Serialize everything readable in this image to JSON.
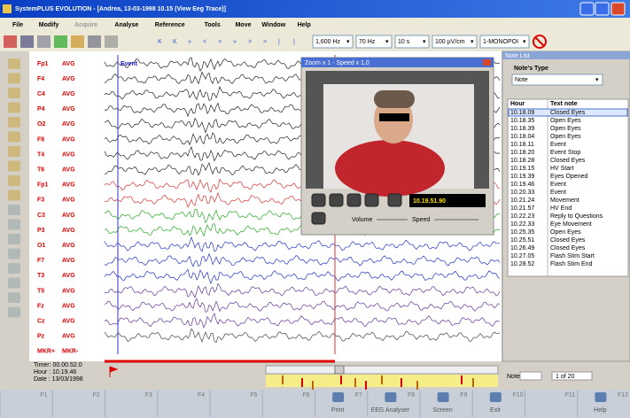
{
  "window": {
    "title": "SystemPLUS EVOLUTION - [Andrea,       13-03-1998 10.15 (View Eeg Trace)]",
    "menu": [
      "File",
      "Modify",
      "Acquire",
      "Analyse",
      "Reference",
      "Tools",
      "Move",
      "Window",
      "Help"
    ],
    "toolbar": [
      "1,600 Hz",
      "70 Hz",
      "10 s",
      "100 µV/cm",
      "1-MONOPOI"
    ]
  },
  "eeg": {
    "event": "Event",
    "channels": [
      [
        "Fp1",
        "AVG"
      ],
      [
        "F4",
        "AVG"
      ],
      [
        "C4",
        "AVG"
      ],
      [
        "P4",
        "AVG"
      ],
      [
        "O2",
        "AVG"
      ],
      [
        "F8",
        "AVG"
      ],
      [
        "T4",
        "AVG"
      ],
      [
        "T6",
        "AVG"
      ],
      [
        "Fp1",
        "AVG"
      ],
      [
        "F3",
        "AVG"
      ],
      [
        "C3",
        "AVG"
      ],
      [
        "P3",
        "AVG"
      ],
      [
        "O1",
        "AVG"
      ],
      [
        "F7",
        "AVG"
      ],
      [
        "T3",
        "AVG"
      ],
      [
        "T5",
        "AVG"
      ],
      [
        "Fz",
        "AVG"
      ],
      [
        "Cz",
        "AVG"
      ],
      [
        "Pz",
        "AVG"
      ],
      [
        "MKR+",
        "MKR-"
      ]
    ]
  },
  "video": {
    "title": "Zoom x 1 - Speed x 1,0",
    "time": "10.19.51.90",
    "volume": "Volume",
    "speed": "Speed"
  },
  "notes": {
    "title": "Note List",
    "type_label": "Note's Type",
    "type_value": "Note",
    "columns": [
      "Hour",
      "Text note"
    ],
    "rows": [
      [
        "10.18.09",
        "Closed Eyes"
      ],
      [
        "10.18.35",
        "Open Eyes"
      ],
      [
        "10.18.39",
        "Open Eyes"
      ],
      [
        "10.18.04",
        "Open Eyes"
      ],
      [
        "10.18.11",
        "Event"
      ],
      [
        "10.18.20",
        "Event Stop"
      ],
      [
        "10.18.28",
        "Closed Eyes"
      ],
      [
        "10.19.15",
        "HV Start"
      ],
      [
        "10.19.39",
        "Eyes Opened"
      ],
      [
        "10.19.46",
        "Event"
      ],
      [
        "10.20.33",
        "Event"
      ],
      [
        "10.21.24",
        "Movement"
      ],
      [
        "10.21.57",
        "HV End"
      ],
      [
        "10.22.23",
        "Reply to Questions"
      ],
      [
        "10.22.33",
        "Eye Movement"
      ],
      [
        "10.25.35",
        "Open Eyes"
      ],
      [
        "10.25.51",
        "Closed Eyes"
      ],
      [
        "10.26.49",
        "Closed Eyes"
      ],
      [
        "10.27.05",
        "Flash Stim Start"
      ],
      [
        "10.28.52",
        "Flash Stim End"
      ]
    ],
    "footer_label": "Note",
    "page": "1 of 20"
  },
  "status": {
    "timer": "Timer: 00.00.52.0",
    "hour": "Hour : 10.19.46",
    "date": "Date : 13/03/1998"
  },
  "fkeys": [
    {
      "key": "F1"
    },
    {
      "key": "F2"
    },
    {
      "key": "F3"
    },
    {
      "key": "F4"
    },
    {
      "key": "F5"
    },
    {
      "key": "F6"
    },
    {
      "key": "F7",
      "label": "Print"
    },
    {
      "key": "F8",
      "label": "EEG Analyser"
    },
    {
      "key": "F9",
      "label": "Screen"
    },
    {
      "key": "F10",
      "label": "Exit"
    },
    {
      "key": "F11"
    },
    {
      "key": "F12",
      "label": "Help"
    }
  ]
}
